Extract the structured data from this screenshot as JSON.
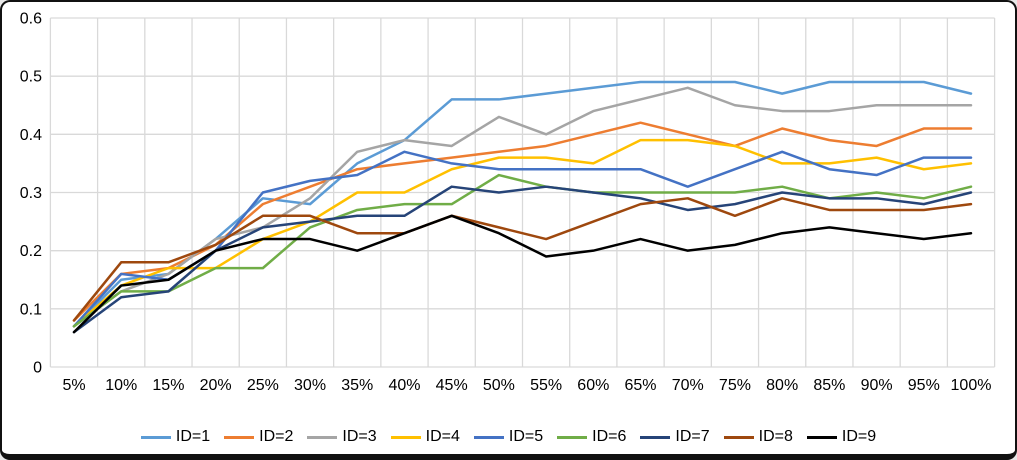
{
  "chart_data": {
    "type": "line",
    "title": "",
    "xlabel": "",
    "ylabel": "",
    "grid": true,
    "legend_position": "bottom",
    "ylim": [
      0,
      0.6
    ],
    "ytick_labels": [
      "0",
      "0.1",
      "0.2",
      "0.3",
      "0.4",
      "0.5",
      "0.6"
    ],
    "ytick_values": [
      0,
      0.1,
      0.2,
      0.3,
      0.4,
      0.5,
      0.6
    ],
    "categories": [
      "5%",
      "10%",
      "15%",
      "20%",
      "25%",
      "30%",
      "35%",
      "40%",
      "45%",
      "50%",
      "55%",
      "60%",
      "65%",
      "70%",
      "75%",
      "80%",
      "85%",
      "90%",
      "95%",
      "100%"
    ],
    "series": [
      {
        "name": "ID=1",
        "color": "#5B9BD5",
        "values": [
          0.07,
          0.15,
          0.16,
          0.22,
          0.29,
          0.28,
          0.35,
          0.39,
          0.46,
          0.46,
          0.47,
          0.48,
          0.49,
          0.49,
          0.49,
          0.47,
          0.49,
          0.49,
          0.49,
          0.47
        ]
      },
      {
        "name": "ID=2",
        "color": "#ED7D31",
        "values": [
          0.08,
          0.16,
          0.17,
          0.21,
          0.28,
          0.31,
          0.34,
          0.35,
          0.36,
          0.37,
          0.38,
          0.4,
          0.42,
          0.4,
          0.38,
          0.41,
          0.39,
          0.38,
          0.41,
          0.41
        ]
      },
      {
        "name": "ID=3",
        "color": "#A5A5A5",
        "values": [
          0.07,
          0.13,
          0.16,
          0.22,
          0.24,
          0.29,
          0.37,
          0.39,
          0.38,
          0.43,
          0.4,
          0.44,
          0.46,
          0.48,
          0.45,
          0.44,
          0.44,
          0.45,
          0.45,
          0.45
        ]
      },
      {
        "name": "ID=4",
        "color": "#FFC000",
        "values": [
          0.07,
          0.14,
          0.17,
          0.17,
          0.22,
          0.25,
          0.3,
          0.3,
          0.34,
          0.36,
          0.36,
          0.35,
          0.39,
          0.39,
          0.38,
          0.35,
          0.35,
          0.36,
          0.34,
          0.35
        ]
      },
      {
        "name": "ID=5",
        "color": "#4472C4",
        "values": [
          0.07,
          0.16,
          0.15,
          0.2,
          0.3,
          0.32,
          0.33,
          0.37,
          0.35,
          0.34,
          0.34,
          0.34,
          0.34,
          0.31,
          0.34,
          0.37,
          0.34,
          0.33,
          0.36,
          0.36
        ]
      },
      {
        "name": "ID=6",
        "color": "#70AD47",
        "values": [
          0.07,
          0.13,
          0.13,
          0.17,
          0.17,
          0.24,
          0.27,
          0.28,
          0.28,
          0.33,
          0.31,
          0.3,
          0.3,
          0.3,
          0.3,
          0.31,
          0.29,
          0.3,
          0.29,
          0.31
        ]
      },
      {
        "name": "ID=7",
        "color": "#264478",
        "values": [
          0.06,
          0.12,
          0.13,
          0.2,
          0.24,
          0.25,
          0.26,
          0.26,
          0.31,
          0.3,
          0.31,
          0.3,
          0.29,
          0.27,
          0.28,
          0.3,
          0.29,
          0.29,
          0.28,
          0.3
        ]
      },
      {
        "name": "ID=8",
        "color": "#9E480E",
        "values": [
          0.08,
          0.18,
          0.18,
          0.21,
          0.26,
          0.26,
          0.23,
          0.23,
          0.26,
          0.24,
          0.22,
          0.25,
          0.28,
          0.29,
          0.26,
          0.29,
          0.27,
          0.27,
          0.27,
          0.28
        ]
      },
      {
        "name": "ID=9",
        "color": "#000000",
        "values": [
          0.06,
          0.14,
          0.15,
          0.2,
          0.22,
          0.22,
          0.2,
          0.23,
          0.26,
          0.23,
          0.19,
          0.2,
          0.22,
          0.2,
          0.21,
          0.23,
          0.24,
          0.23,
          0.22,
          0.23
        ]
      }
    ],
    "style": {
      "gridline_color": "#D9D9D9",
      "background_color": "#FFFFFF",
      "line_width": 2.5
    }
  }
}
